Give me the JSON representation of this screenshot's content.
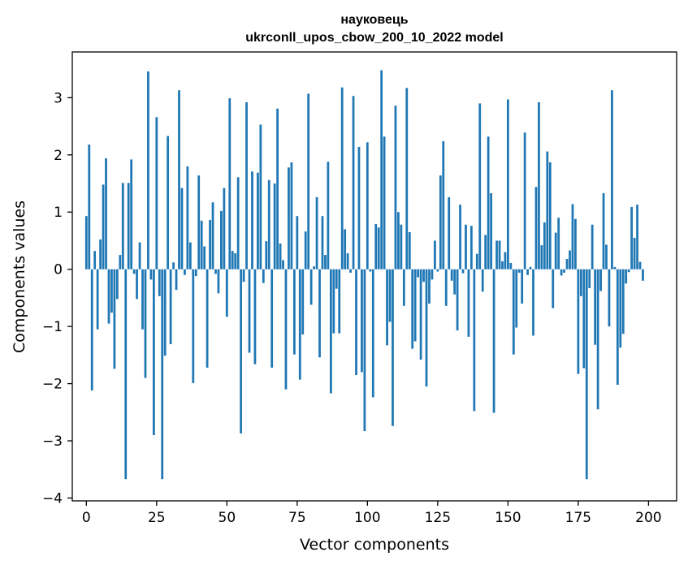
{
  "chart_data": {
    "type": "bar",
    "title": "науковець",
    "subtitle": "ukrconll_upos_cbow_200_10_2022 model",
    "xlabel": "Vector components",
    "ylabel": "Components values",
    "xlim": [
      -5,
      210
    ],
    "ylim": [
      -4.05,
      3.8
    ],
    "xticks": [
      0,
      25,
      50,
      75,
      100,
      125,
      150,
      175,
      200
    ],
    "yticks": [
      -4,
      -3,
      -2,
      -1,
      0,
      1,
      2,
      3
    ],
    "ytick_labels": [
      "−4",
      "−3",
      "−2",
      "−1",
      "0",
      "1",
      "2",
      "3"
    ],
    "color": "#1f77b4",
    "values": [
      0.93,
      2.18,
      -2.12,
      0.32,
      -1.05,
      0.52,
      1.48,
      1.94,
      -0.95,
      -0.76,
      -1.74,
      -0.52,
      0.25,
      1.51,
      -3.67,
      1.51,
      1.92,
      -0.08,
      -0.52,
      0.47,
      -1.05,
      -1.9,
      3.46,
      -0.18,
      -2.9,
      2.66,
      -0.47,
      -3.67,
      -1.51,
      2.33,
      -1.31,
      0.12,
      -0.36,
      3.13,
      1.42,
      -0.1,
      1.8,
      0.47,
      -1.99,
      -0.12,
      1.64,
      0.85,
      0.4,
      -1.72,
      0.86,
      1.17,
      -0.08,
      -0.42,
      1.02,
      1.42,
      -0.83,
      2.99,
      0.32,
      0.28,
      1.61,
      -2.87,
      -0.22,
      2.92,
      -1.46,
      1.71,
      -1.66,
      1.69,
      2.53,
      -0.24,
      0.49,
      1.56,
      -1.72,
      1.5,
      2.81,
      0.45,
      0.16,
      -2.1,
      1.78,
      1.87,
      -1.49,
      0.93,
      -1.93,
      -1.14,
      0.66,
      3.07,
      -0.62,
      0.05,
      1.26,
      -1.54,
      0.93,
      0.25,
      1.88,
      -2.17,
      -1.12,
      -0.34,
      -1.12,
      3.18,
      0.7,
      0.28,
      -0.06,
      3.03,
      -1.85,
      2.14,
      -1.8,
      -2.83,
      2.22,
      -0.04,
      -2.24,
      0.79,
      0.73,
      3.48,
      2.32,
      -1.33,
      -0.92,
      -2.74,
      2.86,
      1.0,
      0.78,
      -0.64,
      3.17,
      0.65,
      -1.39,
      -1.26,
      -0.14,
      -1.58,
      -0.22,
      -2.05,
      -0.6,
      -0.18,
      0.5,
      -0.04,
      1.64,
      2.24,
      -0.64,
      1.26,
      -0.2,
      -0.44,
      -1.07,
      1.13,
      -0.07,
      0.78,
      -1.18,
      0.76,
      -2.48,
      0.27,
      2.9,
      -0.39,
      0.6,
      2.32,
      1.33,
      -2.51,
      0.5,
      0.5,
      0.14,
      0.3,
      2.97,
      0.11,
      -1.49,
      -1.02,
      -0.06,
      -0.6,
      2.39,
      -0.1,
      0.04,
      -1.16,
      1.44,
      2.92,
      0.42,
      0.82,
      2.06,
      1.87,
      -0.68,
      0.64,
      0.9,
      -0.11,
      -0.06,
      0.18,
      0.33,
      1.14,
      0.88,
      -1.83,
      -0.47,
      -1.73,
      -3.67,
      -0.33,
      0.78,
      -1.32,
      -2.45,
      -0.38,
      1.33,
      0.43,
      -1.0,
      3.13,
      0.04,
      -2.02,
      -1.37,
      -1.13,
      -0.25,
      -0.05,
      1.09,
      0.55,
      1.13,
      0.13,
      -0.2
    ]
  }
}
